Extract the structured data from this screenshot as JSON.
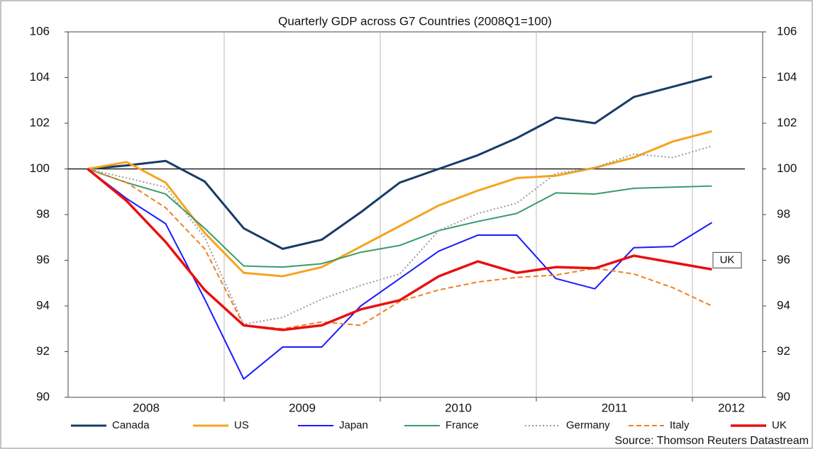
{
  "chart_data": {
    "type": "line",
    "title": "Quarterly GDP across G7 Countries (2008Q1=100)",
    "source": "Source: Thomson Reuters Datastream",
    "annotation": "UK",
    "x": [
      2008.125,
      2008.375,
      2008.625,
      2008.875,
      2009.125,
      2009.375,
      2009.625,
      2009.875,
      2010.125,
      2010.375,
      2010.625,
      2010.875,
      2011.125,
      2011.375,
      2011.625,
      2011.875,
      2012.125
    ],
    "xlim": [
      2008,
      2012.45
    ],
    "xticks": [
      {
        "value": 2008.5,
        "label": "2008"
      },
      {
        "value": 2009.5,
        "label": "2009"
      },
      {
        "value": 2010.5,
        "label": "2010"
      },
      {
        "value": 2011.5,
        "label": "2011"
      },
      {
        "value": 2012.25,
        "label": "2012"
      }
    ],
    "xgrid": [
      2009,
      2010,
      2011,
      2012
    ],
    "ylim": [
      90,
      106
    ],
    "yticks": [
      90,
      92,
      94,
      96,
      98,
      100,
      102,
      104,
      106
    ],
    "reference_line": 100,
    "series": [
      {
        "name": "Canada",
        "color": "#173c66",
        "width": 3,
        "dash": "none",
        "values": [
          100,
          100.15,
          100.35,
          99.45,
          97.4,
          96.5,
          96.9,
          98.1,
          99.4,
          100.0,
          100.6,
          101.35,
          102.25,
          102.0,
          103.15,
          103.6,
          104.05
        ]
      },
      {
        "name": "US",
        "color": "#f5a41f",
        "width": 3,
        "dash": "none",
        "values": [
          100,
          100.3,
          99.4,
          97.2,
          95.45,
          95.3,
          95.7,
          96.6,
          97.5,
          98.4,
          99.05,
          99.6,
          99.7,
          100.05,
          100.5,
          101.2,
          101.65
        ]
      },
      {
        "name": "Japan",
        "color": "#1a1aff",
        "width": 2,
        "dash": "none",
        "values": [
          100,
          98.7,
          97.6,
          94.3,
          90.8,
          92.2,
          92.2,
          94.0,
          95.2,
          96.4,
          97.1,
          97.1,
          95.2,
          94.75,
          96.55,
          96.6,
          97.65
        ]
      },
      {
        "name": "France",
        "color": "#3a9a6a",
        "width": 2,
        "dash": "none",
        "values": [
          100,
          99.4,
          98.9,
          97.4,
          95.75,
          95.7,
          95.85,
          96.35,
          96.65,
          97.3,
          97.7,
          98.05,
          98.95,
          98.9,
          99.15,
          99.2,
          99.25
        ]
      },
      {
        "name": "Germany",
        "color": "#9a9a9a",
        "width": 2,
        "dash": "2 3",
        "values": [
          100,
          99.6,
          99.2,
          97.0,
          93.2,
          93.5,
          94.3,
          94.9,
          95.4,
          97.3,
          98.05,
          98.5,
          99.8,
          100.05,
          100.65,
          100.5,
          101.0
        ]
      },
      {
        "name": "Italy",
        "color": "#f07f20",
        "width": 2,
        "dash": "7 4",
        "values": [
          100,
          99.4,
          98.3,
          96.5,
          93.15,
          93.0,
          93.3,
          93.15,
          94.2,
          94.7,
          95.05,
          95.25,
          95.35,
          95.65,
          95.4,
          94.8,
          94.0
        ]
      },
      {
        "name": "UK",
        "color": "#e81010",
        "width": 3.5,
        "dash": "none",
        "values": [
          100,
          98.6,
          96.8,
          94.7,
          93.15,
          92.95,
          93.15,
          93.85,
          94.25,
          95.3,
          95.95,
          95.45,
          95.7,
          95.65,
          96.2,
          95.9,
          95.6
        ]
      }
    ]
  }
}
